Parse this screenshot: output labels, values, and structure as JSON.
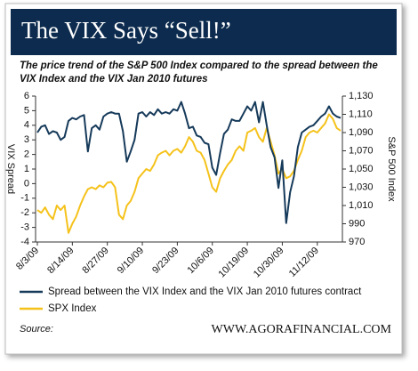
{
  "chart_data": {
    "type": "line",
    "title": "The VIX Says “Sell!”",
    "subtitle": [
      "The price trend of the S&P 500 Index compared to the spread between the",
      "VIX Index and the VIX Jan 2010 futures"
    ],
    "ylabel": "VIX Spread",
    "y2label": "S&P 500 Index",
    "source": "Source:",
    "website": "WWW.AGORAFINANCIAL.COM",
    "categories": [
      "8/3/09",
      null,
      null,
      null,
      null,
      null,
      null,
      null,
      null,
      "8/14/09",
      null,
      null,
      null,
      null,
      null,
      null,
      null,
      null,
      "8/27/09",
      null,
      null,
      null,
      null,
      null,
      null,
      null,
      null,
      "9/10/09",
      null,
      null,
      null,
      null,
      null,
      null,
      null,
      null,
      "9/23/09",
      null,
      null,
      null,
      null,
      null,
      null,
      null,
      null,
      "10/6/09",
      null,
      null,
      null,
      null,
      null,
      null,
      null,
      null,
      "10/19/09",
      null,
      null,
      null,
      null,
      null,
      null,
      null,
      null,
      "10/30/09",
      null,
      null,
      null,
      null,
      null,
      null,
      null,
      null,
      "11/12/09",
      null,
      null,
      null,
      null,
      null,
      null
    ],
    "series": [
      {
        "name": "Spread between the VIX Index and the VIX Jan 2010 futures contract",
        "color": "#163a5a",
        "values": [
          3.5,
          3.9,
          4.0,
          3.4,
          3.6,
          3.5,
          3.0,
          3.2,
          4.3,
          4.5,
          4.4,
          4.6,
          4.7,
          2.2,
          3.8,
          4.0,
          3.7,
          4.6,
          4.8,
          4.9,
          4.8,
          4.8,
          3.6,
          1.5,
          2.2,
          3.0,
          4.8,
          4.9,
          4.6,
          4.9,
          4.7,
          5.1,
          4.8,
          4.9,
          4.8,
          5.1,
          5.0,
          5.6,
          4.8,
          3.8,
          3.9,
          3.3,
          3.2,
          2.8,
          2.7,
          1.1,
          0.6,
          2.1,
          3.4,
          3.7,
          4.4,
          4.3,
          4.3,
          4.8,
          5.3,
          5.0,
          5.6,
          4.2,
          5.6,
          4.0,
          2.5,
          1.8,
          -0.3,
          1.6,
          -2.7,
          -0.6,
          0.5,
          2.5,
          3.5,
          3.7,
          3.9,
          4.0,
          4.3,
          4.6,
          4.8,
          5.3,
          4.8,
          4.6,
          4.5
        ]
      },
      {
        "name": "SPX Index",
        "color": "#f5c21b",
        "axis": "y2",
        "values": [
          1005,
          1002,
          1008,
          1000,
          995,
          1010,
          1005,
          1010,
          980,
          990,
          998,
          1010,
          1020,
          1028,
          1030,
          1028,
          1032,
          1030,
          1035,
          1036,
          1030,
          1000,
          995,
          1010,
          1015,
          1025,
          1040,
          1045,
          1050,
          1048,
          1055,
          1065,
          1068,
          1070,
          1065,
          1070,
          1072,
          1068,
          1075,
          1085,
          1080,
          1070,
          1068,
          1060,
          1045,
          1030,
          1025,
          1040,
          1048,
          1055,
          1060,
          1070,
          1075,
          1070,
          1090,
          1092,
          1095,
          1085,
          1080,
          1095,
          1080,
          1065,
          1045,
          1050,
          1040,
          1042,
          1048,
          1060,
          1070,
          1085,
          1090,
          1092,
          1090,
          1095,
          1100,
          1110,
          1105,
          1095,
          1092
        ]
      }
    ],
    "ylim": [
      -4,
      6
    ],
    "yticks": [
      -4,
      -3,
      -2,
      -1,
      0,
      1,
      2,
      3,
      4,
      5,
      6
    ],
    "y2lim": [
      970,
      1130
    ],
    "y2ticks": [
      970,
      990,
      {
        "value": 1010,
        "label": "1,010"
      },
      {
        "value": 1030,
        "label": "1,030"
      },
      {
        "value": 1050,
        "label": "1,050"
      },
      {
        "value": 1070,
        "label": "1,070"
      },
      {
        "value": 1090,
        "label": "1,090"
      },
      {
        "value": 1110,
        "label": "1,110"
      },
      {
        "value": 1130,
        "label": "1,130"
      }
    ],
    "grid": false
  }
}
